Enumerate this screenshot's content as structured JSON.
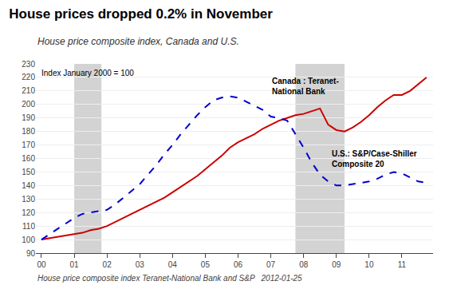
{
  "chart_data": {
    "type": "line",
    "title": "House prices dropped 0.2% in November",
    "subtitle": "House price composite index, Canada and U.S.",
    "ylabel": "Index January 2000 = 100",
    "annotations": [
      "House price composite index Teranet-National Bank and S&P   2012-01-25"
    ],
    "bands": {
      "color": "#d3d3d3",
      "ranges": [
        [
          2001.0,
          2001.83
        ],
        [
          2007.75,
          2009.25
        ]
      ]
    },
    "x": [
      2000.0,
      2000.25,
      2000.5,
      2000.75,
      2001.0,
      2001.25,
      2001.5,
      2001.75,
      2002.0,
      2002.25,
      2002.5,
      2002.75,
      2003.0,
      2003.25,
      2003.5,
      2003.75,
      2004.0,
      2004.25,
      2004.5,
      2004.75,
      2005.0,
      2005.25,
      2005.5,
      2005.75,
      2006.0,
      2006.25,
      2006.5,
      2006.75,
      2007.0,
      2007.25,
      2007.5,
      2007.75,
      2008.0,
      2008.25,
      2008.5,
      2008.75,
      2009.0,
      2009.25,
      2009.5,
      2009.75,
      2010.0,
      2010.25,
      2010.5,
      2010.75,
      2011.0,
      2011.25,
      2011.5,
      2011.75
    ],
    "series": [
      {
        "name": "Canada : Teranet-\nNational Bank",
        "color": "#cc0000",
        "line_style": "solid",
        "values": [
          100,
          101,
          102,
          103,
          104,
          105,
          107,
          108,
          110,
          113,
          116,
          119,
          122,
          125,
          128,
          131,
          135,
          139,
          143,
          147,
          152,
          157,
          162,
          168,
          172,
          175,
          178,
          182,
          185,
          188,
          190,
          192,
          193,
          195,
          197,
          185,
          181,
          180,
          183,
          187,
          192,
          198,
          203,
          207,
          207,
          210,
          215,
          220
        ]
      },
      {
        "name": "U.S.: S&P/Case-Shiller\nComposite 20",
        "color": "#0000cc",
        "line_style": "dashed",
        "values": [
          100,
          104,
          108,
          112,
          116,
          119,
          120,
          121,
          122,
          126,
          131,
          136,
          141,
          148,
          155,
          163,
          170,
          178,
          185,
          192,
          198,
          203,
          205,
          206,
          205,
          202,
          199,
          196,
          191,
          190,
          188,
          178,
          168,
          157,
          148,
          143,
          140,
          140,
          141,
          142,
          143,
          145,
          148,
          150,
          149,
          146,
          143,
          142
        ]
      }
    ],
    "xlim": [
      1999.83,
      2011.95
    ],
    "xticks": [
      {
        "value": 2000,
        "label": "00"
      },
      {
        "value": 2001,
        "label": "01"
      },
      {
        "value": 2002,
        "label": "02"
      },
      {
        "value": 2003,
        "label": "03"
      },
      {
        "value": 2004,
        "label": "04"
      },
      {
        "value": 2005,
        "label": "05"
      },
      {
        "value": 2006,
        "label": "06"
      },
      {
        "value": 2007,
        "label": "07"
      },
      {
        "value": 2008,
        "label": "08"
      },
      {
        "value": 2009,
        "label": "09"
      },
      {
        "value": 2010,
        "label": "10"
      },
      {
        "value": 2011,
        "label": "11"
      }
    ],
    "ylim": [
      90,
      230
    ],
    "yticks": [
      90,
      100,
      110,
      120,
      130,
      140,
      150,
      160,
      170,
      180,
      190,
      200,
      210,
      220,
      230
    ],
    "grid": true
  }
}
